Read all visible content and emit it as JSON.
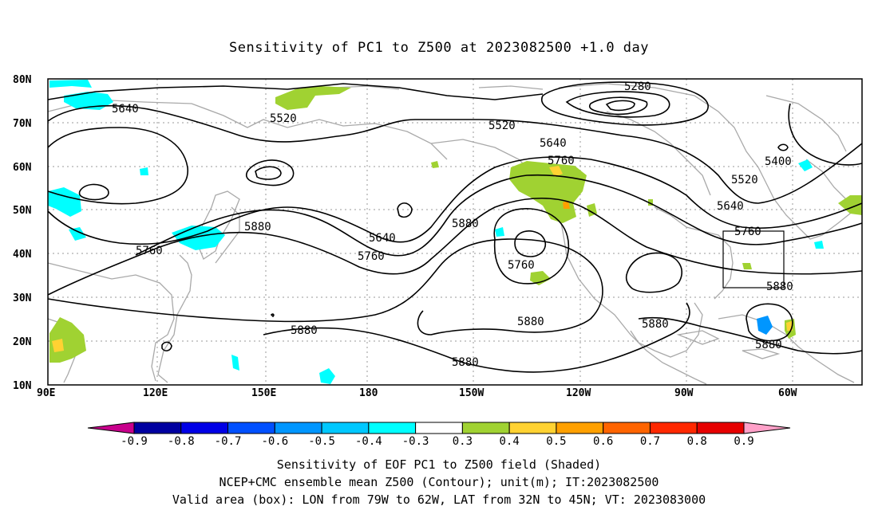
{
  "title": "Sensitivity of PC1 to Z500 at 2023082500 +1.0 day",
  "map": {
    "lon_range": [
      "90E",
      "30W"
    ],
    "lat_range": [
      "10N",
      "80N"
    ],
    "lat_labels": [
      "80N",
      "70N",
      "60N",
      "50N",
      "40N",
      "30N",
      "20N",
      "10N"
    ],
    "lon_labels": [
      "90E",
      "120E",
      "150E",
      "180",
      "150W",
      "120W",
      "90W",
      "60W"
    ],
    "contour_color": "#000000",
    "coastline_color": "#a9a9a9",
    "grid_color": "#9a9a9a",
    "box_color": "#000000",
    "contour_labels": [
      "5640",
      "5520",
      "5280",
      "5520",
      "5640",
      "5760",
      "5400",
      "5520",
      "5640",
      "5880",
      "5880",
      "5640",
      "5760",
      "5760",
      "5760",
      "5760",
      "5880",
      "5880",
      "5880",
      "5880",
      "5880",
      "5880"
    ]
  },
  "colorbar": {
    "labels": [
      "-0.9",
      "-0.8",
      "-0.7",
      "-0.6",
      "-0.5",
      "-0.4",
      "-0.3",
      "0.3",
      "0.4",
      "0.5",
      "0.6",
      "0.7",
      "0.8",
      "0.9"
    ],
    "colors": [
      "#c8008c",
      "#0000a0",
      "#0000e6",
      "#0050ff",
      "#0096ff",
      "#00c8ff",
      "#00ffff",
      "#ffffff",
      "#a0d232",
      "#ffd232",
      "#ffa000",
      "#ff6400",
      "#ff2800",
      "#e60000",
      "#ffa0c8"
    ]
  },
  "footer": {
    "line1": "Sensitivity of EOF PC1 to Z500 field (Shaded)",
    "line2": "NCEP+CMC ensemble mean Z500 (Contour); unit(m); IT:2023082500",
    "line3": "Valid area (box): LON from 79W to 62W, LAT from 32N to 45N; VT: 2023083000"
  }
}
